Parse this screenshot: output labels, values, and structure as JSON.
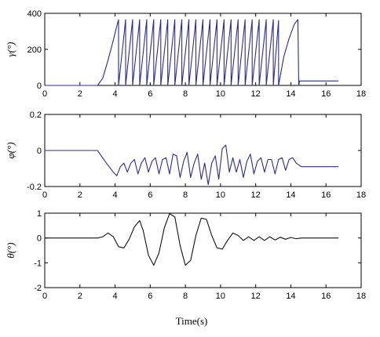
{
  "xlabel": "Time(s)",
  "chart_data": [
    {
      "type": "line",
      "ylabel": "γ(°)",
      "xlim": [
        0,
        18
      ],
      "ylim": [
        0,
        400
      ],
      "xticks": [
        "0",
        "2",
        "4",
        "6",
        "8",
        "10",
        "12",
        "14",
        "16",
        "18"
      ],
      "yticks": [
        "0",
        "200",
        "400"
      ],
      "series": [
        {
          "color": "#2b2b8f",
          "x": [
            0,
            3.0,
            3.3,
            3.6,
            3.9,
            4.1,
            4.2,
            4.2,
            4.6,
            4.6,
            5.0,
            5.0,
            5.4,
            5.4,
            5.8,
            5.8,
            6.2,
            6.2,
            6.6,
            6.6,
            7.0,
            7.0,
            7.4,
            7.4,
            7.8,
            7.8,
            8.2,
            8.2,
            8.6,
            8.6,
            9.0,
            9.0,
            9.4,
            9.4,
            9.8,
            9.8,
            10.2,
            10.2,
            10.6,
            10.6,
            11.0,
            11.0,
            11.4,
            11.4,
            11.8,
            11.8,
            12.2,
            12.2,
            12.6,
            12.6,
            13.0,
            13.0,
            13.3,
            13.3,
            13.6,
            13.9,
            14.2,
            14.4,
            14.45,
            14.5,
            16.7
          ],
          "y": [
            0,
            0,
            40,
            140,
            250,
            330,
            365,
            0,
            365,
            0,
            365,
            0,
            365,
            0,
            365,
            0,
            365,
            0,
            365,
            0,
            365,
            0,
            365,
            0,
            365,
            0,
            365,
            0,
            365,
            0,
            365,
            0,
            365,
            0,
            365,
            0,
            365,
            0,
            365,
            0,
            365,
            0,
            365,
            0,
            365,
            0,
            365,
            0,
            365,
            0,
            365,
            0,
            360,
            0,
            160,
            260,
            340,
            365,
            0,
            25,
            25
          ]
        }
      ]
    },
    {
      "type": "line",
      "ylabel": "φ(°)",
      "xlim": [
        0,
        18
      ],
      "ylim": [
        -0.2,
        0.2
      ],
      "xticks": [
        "0",
        "2",
        "4",
        "6",
        "8",
        "10",
        "12",
        "14",
        "16",
        "18"
      ],
      "yticks": [
        "0.2",
        "0",
        "-0.2"
      ],
      "series": [
        {
          "color": "#2b2b8f",
          "x": [
            0,
            3.0,
            3.5,
            3.9,
            4.1,
            4.3,
            4.5,
            4.7,
            4.9,
            5.1,
            5.3,
            5.5,
            5.7,
            5.9,
            6.1,
            6.3,
            6.5,
            6.7,
            6.9,
            7.1,
            7.3,
            7.5,
            7.7,
            7.9,
            8.1,
            8.3,
            8.5,
            8.7,
            8.9,
            9.1,
            9.3,
            9.5,
            9.7,
            9.9,
            10.1,
            10.3,
            10.5,
            10.7,
            10.9,
            11.1,
            11.3,
            11.5,
            11.7,
            11.9,
            12.1,
            12.3,
            12.5,
            12.7,
            12.9,
            13.1,
            13.3,
            13.5,
            13.7,
            13.9,
            14.1,
            14.3,
            14.6,
            16.7
          ],
          "y": [
            0,
            0,
            -0.07,
            -0.12,
            -0.14,
            -0.09,
            -0.07,
            -0.12,
            -0.07,
            -0.05,
            -0.13,
            -0.07,
            -0.04,
            -0.12,
            -0.06,
            -0.04,
            -0.13,
            -0.05,
            -0.04,
            -0.13,
            -0.02,
            -0.03,
            -0.15,
            -0.06,
            -0.01,
            -0.15,
            -0.07,
            -0.02,
            -0.16,
            -0.07,
            -0.19,
            -0.07,
            -0.03,
            -0.16,
            0.01,
            0.03,
            -0.12,
            -0.04,
            -0.12,
            -0.05,
            -0.15,
            -0.06,
            -0.02,
            -0.13,
            -0.06,
            -0.04,
            -0.12,
            -0.05,
            -0.05,
            -0.13,
            -0.05,
            -0.04,
            -0.11,
            -0.05,
            -0.04,
            -0.07,
            -0.09,
            -0.09
          ]
        }
      ]
    },
    {
      "type": "line",
      "ylabel": "θ(°)",
      "xlim": [
        0,
        18
      ],
      "ylim": [
        -2,
        1
      ],
      "xticks": [
        "0",
        "2",
        "4",
        "6",
        "8",
        "10",
        "12",
        "14",
        "16",
        "18"
      ],
      "yticks": [
        "1",
        "0",
        "-1",
        "-2"
      ],
      "series": [
        {
          "color": "#111111",
          "x": [
            0,
            3.0,
            3.3,
            3.6,
            3.9,
            4.2,
            4.5,
            4.8,
            5.1,
            5.4,
            5.6,
            5.9,
            6.2,
            6.5,
            6.8,
            7.1,
            7.4,
            7.7,
            8.0,
            8.3,
            8.6,
            8.9,
            9.2,
            9.5,
            9.8,
            10.1,
            10.4,
            10.7,
            11.0,
            11.3,
            11.6,
            11.9,
            12.2,
            12.5,
            12.8,
            13.1,
            13.4,
            13.7,
            14.0,
            14.3,
            14.6,
            16.7
          ],
          "y": [
            0,
            0,
            0.05,
            0.2,
            0.05,
            -0.35,
            -0.4,
            -0.05,
            0.45,
            0.7,
            0.3,
            -0.7,
            -1.1,
            -0.6,
            0.4,
            0.98,
            0.85,
            -0.3,
            -1.1,
            -0.9,
            0.1,
            0.8,
            0.75,
            0.1,
            -0.4,
            -0.45,
            -0.1,
            0.2,
            0.1,
            -0.1,
            0.05,
            -0.1,
            0.05,
            -0.1,
            0.05,
            -0.08,
            0.03,
            -0.05,
            0.02,
            -0.03,
            0,
            0
          ]
        }
      ]
    }
  ]
}
